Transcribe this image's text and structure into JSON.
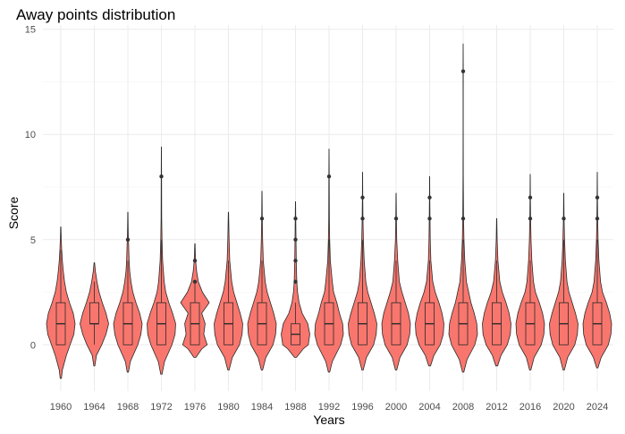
{
  "chart_data": {
    "type": "violin",
    "title": "Away points distribution",
    "xlabel": "Years",
    "ylabel": "Score",
    "ylim": [
      -2.2,
      15.2
    ],
    "yticks": [
      0,
      5,
      10,
      15
    ],
    "grid": true,
    "legend": "none",
    "colors": {
      "fill": "#F8766D",
      "stroke": "#2b2b2b",
      "outlier": "#333333",
      "grid": "#ebebeb"
    },
    "categories": [
      "1960",
      "1964",
      "1968",
      "1972",
      "1976",
      "1980",
      "1984",
      "1988",
      "1992",
      "1996",
      "2000",
      "2004",
      "2008",
      "2012",
      "2016",
      "2020",
      "2024"
    ],
    "series": [
      {
        "year": "1960",
        "violin_min": -1.6,
        "violin_max": 5.6,
        "wmax": 0.46,
        "q1": 0,
        "median": 1,
        "q3": 2,
        "whisker_low": 0,
        "whisker_high": 4.5,
        "outliers": [],
        "density": [
          [
            -1.6,
            0.02
          ],
          [
            -1.2,
            0.05
          ],
          [
            -0.5,
            0.18
          ],
          [
            0,
            0.3
          ],
          [
            0.5,
            0.42
          ],
          [
            1,
            0.46
          ],
          [
            1.5,
            0.4
          ],
          [
            2,
            0.28
          ],
          [
            2.5,
            0.18
          ],
          [
            3,
            0.12
          ],
          [
            3.5,
            0.08
          ],
          [
            4,
            0.05
          ],
          [
            4.5,
            0.03
          ],
          [
            5,
            0.015
          ],
          [
            5.6,
            0.005
          ]
        ]
      },
      {
        "year": "1964",
        "violin_min": -1.0,
        "violin_max": 3.9,
        "wmax": 0.54,
        "q1": 1,
        "median": 1,
        "q3": 2,
        "whisker_low": 0,
        "whisker_high": 3,
        "outliers": [],
        "density": [
          [
            -1.0,
            0.02
          ],
          [
            -0.5,
            0.08
          ],
          [
            0,
            0.28
          ],
          [
            0.5,
            0.44
          ],
          [
            1,
            0.54
          ],
          [
            1.5,
            0.44
          ],
          [
            2,
            0.3
          ],
          [
            2.5,
            0.18
          ],
          [
            3,
            0.1
          ],
          [
            3.5,
            0.04
          ],
          [
            3.9,
            0.01
          ]
        ]
      },
      {
        "year": "1968",
        "violin_min": -1.3,
        "violin_max": 6.3,
        "wmax": 0.46,
        "q1": 0,
        "median": 1,
        "q3": 2,
        "whisker_low": 0,
        "whisker_high": 4,
        "outliers": [
          5
        ],
        "density": [
          [
            -1.3,
            0.02
          ],
          [
            -0.8,
            0.08
          ],
          [
            0,
            0.32
          ],
          [
            0.5,
            0.42
          ],
          [
            1,
            0.46
          ],
          [
            1.5,
            0.38
          ],
          [
            2,
            0.26
          ],
          [
            2.5,
            0.16
          ],
          [
            3,
            0.1
          ],
          [
            3.5,
            0.06
          ],
          [
            4,
            0.04
          ],
          [
            4.5,
            0.03
          ],
          [
            5,
            0.02
          ],
          [
            5.5,
            0.01
          ],
          [
            6.3,
            0.004
          ]
        ]
      },
      {
        "year": "1972",
        "violin_min": -1.4,
        "violin_max": 9.4,
        "wmax": 0.46,
        "q1": 0,
        "median": 1,
        "q3": 2,
        "whisker_low": 0,
        "whisker_high": 5,
        "outliers": [
          8
        ],
        "density": [
          [
            -1.4,
            0.02
          ],
          [
            -0.8,
            0.1
          ],
          [
            0,
            0.34
          ],
          [
            0.5,
            0.44
          ],
          [
            1,
            0.46
          ],
          [
            1.5,
            0.36
          ],
          [
            2,
            0.24
          ],
          [
            2.5,
            0.14
          ],
          [
            3,
            0.09
          ],
          [
            4,
            0.04
          ],
          [
            5,
            0.02
          ],
          [
            6,
            0.01
          ],
          [
            7,
            0.008
          ],
          [
            8,
            0.006
          ],
          [
            9.4,
            0.002
          ]
        ]
      },
      {
        "year": "1976",
        "violin_min": -0.6,
        "violin_max": 4.8,
        "wmax": 0.42,
        "q1": 0,
        "median": 1,
        "q3": 2,
        "whisker_low": 0,
        "whisker_high": 3,
        "outliers": [
          3,
          4
        ],
        "density": [
          [
            -0.6,
            0.03
          ],
          [
            -0.2,
            0.2
          ],
          [
            0,
            0.36
          ],
          [
            0.5,
            0.26
          ],
          [
            1,
            0.3
          ],
          [
            1.5,
            0.2
          ],
          [
            2,
            0.42
          ],
          [
            2.5,
            0.22
          ],
          [
            3,
            0.1
          ],
          [
            3.5,
            0.05
          ],
          [
            4,
            0.02
          ],
          [
            4.8,
            0.005
          ]
        ]
      },
      {
        "year": "1980",
        "violin_min": -1.2,
        "violin_max": 6.3,
        "wmax": 0.44,
        "q1": 0,
        "median": 1,
        "q3": 2,
        "whisker_low": 0,
        "whisker_high": 4,
        "outliers": [],
        "density": [
          [
            -1.2,
            0.02
          ],
          [
            -0.6,
            0.12
          ],
          [
            0,
            0.34
          ],
          [
            0.5,
            0.42
          ],
          [
            1,
            0.44
          ],
          [
            1.5,
            0.36
          ],
          [
            2,
            0.26
          ],
          [
            2.5,
            0.16
          ],
          [
            3,
            0.1
          ],
          [
            4,
            0.04
          ],
          [
            5,
            0.02
          ],
          [
            6.3,
            0.004
          ]
        ]
      },
      {
        "year": "1984",
        "violin_min": -1.2,
        "violin_max": 7.3,
        "wmax": 0.44,
        "q1": 0,
        "median": 1,
        "q3": 2,
        "whisker_low": 0,
        "whisker_high": 4,
        "outliers": [
          6
        ],
        "density": [
          [
            -1.2,
            0.02
          ],
          [
            -0.6,
            0.12
          ],
          [
            0,
            0.34
          ],
          [
            0.5,
            0.42
          ],
          [
            1,
            0.44
          ],
          [
            1.5,
            0.36
          ],
          [
            2,
            0.26
          ],
          [
            2.5,
            0.16
          ],
          [
            3,
            0.1
          ],
          [
            4,
            0.04
          ],
          [
            5,
            0.02
          ],
          [
            6,
            0.01
          ],
          [
            7.3,
            0.003
          ]
        ]
      },
      {
        "year": "1988",
        "violin_min": -0.6,
        "violin_max": 6.8,
        "wmax": 0.56,
        "q1": 0,
        "median": 0.5,
        "q3": 1,
        "whisker_low": 0,
        "whisker_high": 2,
        "outliers": [
          3,
          4,
          5,
          6
        ],
        "density": [
          [
            -0.6,
            0.04
          ],
          [
            -0.2,
            0.3
          ],
          [
            0,
            0.5
          ],
          [
            0.5,
            0.56
          ],
          [
            1,
            0.48
          ],
          [
            1.5,
            0.26
          ],
          [
            2,
            0.14
          ],
          [
            2.5,
            0.08
          ],
          [
            3,
            0.05
          ],
          [
            4,
            0.03
          ],
          [
            5,
            0.02
          ],
          [
            6,
            0.01
          ],
          [
            6.8,
            0.003
          ]
        ]
      },
      {
        "year": "1992",
        "violin_min": -1.3,
        "violin_max": 9.3,
        "wmax": 0.44,
        "q1": 0,
        "median": 1,
        "q3": 2,
        "whisker_low": 0,
        "whisker_high": 5,
        "outliers": [
          8
        ],
        "density": [
          [
            -1.3,
            0.02
          ],
          [
            -0.8,
            0.1
          ],
          [
            0,
            0.36
          ],
          [
            0.5,
            0.44
          ],
          [
            1,
            0.42
          ],
          [
            1.5,
            0.32
          ],
          [
            2,
            0.24
          ],
          [
            2.5,
            0.14
          ],
          [
            3,
            0.1
          ],
          [
            4,
            0.04
          ],
          [
            5,
            0.02
          ],
          [
            6,
            0.01
          ],
          [
            8,
            0.006
          ],
          [
            9.3,
            0.002
          ]
        ]
      },
      {
        "year": "1996",
        "violin_min": -1.2,
        "violin_max": 8.2,
        "wmax": 0.44,
        "q1": 0,
        "median": 1,
        "q3": 2,
        "whisker_low": 0,
        "whisker_high": 5,
        "outliers": [
          6,
          7
        ],
        "density": [
          [
            -1.2,
            0.02
          ],
          [
            -0.6,
            0.12
          ],
          [
            0,
            0.34
          ],
          [
            0.5,
            0.42
          ],
          [
            1,
            0.44
          ],
          [
            1.5,
            0.36
          ],
          [
            2,
            0.26
          ],
          [
            2.5,
            0.16
          ],
          [
            3,
            0.1
          ],
          [
            4,
            0.05
          ],
          [
            5,
            0.025
          ],
          [
            6,
            0.012
          ],
          [
            7,
            0.006
          ],
          [
            8.2,
            0.002
          ]
        ]
      },
      {
        "year": "2000",
        "violin_min": -1.2,
        "violin_max": 7.2,
        "wmax": 0.44,
        "q1": 0,
        "median": 1,
        "q3": 2,
        "whisker_low": 0,
        "whisker_high": 4,
        "outliers": [
          6
        ],
        "density": [
          [
            -1.2,
            0.02
          ],
          [
            -0.6,
            0.12
          ],
          [
            0,
            0.34
          ],
          [
            0.5,
            0.42
          ],
          [
            1,
            0.44
          ],
          [
            1.5,
            0.38
          ],
          [
            2,
            0.28
          ],
          [
            2.5,
            0.18
          ],
          [
            3,
            0.1
          ],
          [
            4,
            0.05
          ],
          [
            5,
            0.02
          ],
          [
            6,
            0.01
          ],
          [
            7.2,
            0.003
          ]
        ]
      },
      {
        "year": "2004",
        "violin_min": -1.0,
        "violin_max": 8.0,
        "wmax": 0.46,
        "q1": 0,
        "median": 1,
        "q3": 2,
        "whisker_low": 0,
        "whisker_high": 4,
        "outliers": [
          6,
          7
        ],
        "density": [
          [
            -1.0,
            0.03
          ],
          [
            -0.5,
            0.14
          ],
          [
            0,
            0.34
          ],
          [
            0.5,
            0.44
          ],
          [
            1,
            0.46
          ],
          [
            1.5,
            0.4
          ],
          [
            2,
            0.3
          ],
          [
            2.5,
            0.18
          ],
          [
            3,
            0.1
          ],
          [
            4,
            0.04
          ],
          [
            5,
            0.02
          ],
          [
            6,
            0.012
          ],
          [
            7,
            0.006
          ],
          [
            8.0,
            0.002
          ]
        ]
      },
      {
        "year": "2008",
        "violin_min": -1.3,
        "violin_max": 14.3,
        "wmax": 0.44,
        "q1": 0,
        "median": 1,
        "q3": 2,
        "whisker_low": 0,
        "whisker_high": 5,
        "outliers": [
          6,
          13
        ],
        "density": [
          [
            -1.3,
            0.02
          ],
          [
            -0.7,
            0.12
          ],
          [
            0,
            0.36
          ],
          [
            0.5,
            0.44
          ],
          [
            1,
            0.42
          ],
          [
            1.5,
            0.34
          ],
          [
            2,
            0.24
          ],
          [
            3,
            0.1
          ],
          [
            4,
            0.05
          ],
          [
            5,
            0.025
          ],
          [
            6,
            0.012
          ],
          [
            8,
            0.005
          ],
          [
            10,
            0.003
          ],
          [
            12,
            0.003
          ],
          [
            13,
            0.004
          ],
          [
            14.3,
            0.001
          ]
        ]
      },
      {
        "year": "2012",
        "violin_min": -1.0,
        "violin_max": 6.0,
        "wmax": 0.46,
        "q1": 0,
        "median": 1,
        "q3": 2,
        "whisker_low": 0,
        "whisker_high": 4,
        "outliers": [],
        "density": [
          [
            -1.0,
            0.03
          ],
          [
            -0.5,
            0.14
          ],
          [
            0,
            0.34
          ],
          [
            0.5,
            0.44
          ],
          [
            1,
            0.46
          ],
          [
            1.5,
            0.4
          ],
          [
            2,
            0.3
          ],
          [
            2.5,
            0.18
          ],
          [
            3,
            0.1
          ],
          [
            4,
            0.04
          ],
          [
            5,
            0.015
          ],
          [
            6.0,
            0.004
          ]
        ]
      },
      {
        "year": "2016",
        "violin_min": -1.2,
        "violin_max": 8.1,
        "wmax": 0.44,
        "q1": 0,
        "median": 1,
        "q3": 2,
        "whisker_low": 0,
        "whisker_high": 4,
        "outliers": [
          6,
          7
        ],
        "density": [
          [
            -1.2,
            0.02
          ],
          [
            -0.6,
            0.12
          ],
          [
            0,
            0.34
          ],
          [
            0.5,
            0.42
          ],
          [
            1,
            0.44
          ],
          [
            1.5,
            0.38
          ],
          [
            2,
            0.28
          ],
          [
            2.5,
            0.16
          ],
          [
            3,
            0.1
          ],
          [
            4,
            0.05
          ],
          [
            5,
            0.025
          ],
          [
            6,
            0.012
          ],
          [
            7,
            0.006
          ],
          [
            8.1,
            0.002
          ]
        ]
      },
      {
        "year": "2020",
        "violin_min": -1.2,
        "violin_max": 7.2,
        "wmax": 0.44,
        "q1": 0,
        "median": 1,
        "q3": 2,
        "whisker_low": 0,
        "whisker_high": 5,
        "outliers": [
          6
        ],
        "density": [
          [
            -1.2,
            0.02
          ],
          [
            -0.6,
            0.12
          ],
          [
            0,
            0.34
          ],
          [
            0.5,
            0.42
          ],
          [
            1,
            0.44
          ],
          [
            1.5,
            0.36
          ],
          [
            2,
            0.26
          ],
          [
            2.5,
            0.16
          ],
          [
            3,
            0.1
          ],
          [
            4,
            0.05
          ],
          [
            5,
            0.025
          ],
          [
            6,
            0.01
          ],
          [
            7.2,
            0.003
          ]
        ]
      },
      {
        "year": "2024",
        "violin_min": -1.1,
        "violin_max": 8.2,
        "wmax": 0.44,
        "q1": 0,
        "median": 1,
        "q3": 2,
        "whisker_low": 0,
        "whisker_high": 5,
        "outliers": [
          6,
          7
        ],
        "density": [
          [
            -1.1,
            0.02
          ],
          [
            -0.6,
            0.12
          ],
          [
            0,
            0.34
          ],
          [
            0.5,
            0.42
          ],
          [
            1,
            0.44
          ],
          [
            1.5,
            0.38
          ],
          [
            2,
            0.28
          ],
          [
            2.5,
            0.16
          ],
          [
            3,
            0.1
          ],
          [
            4,
            0.05
          ],
          [
            5,
            0.025
          ],
          [
            6,
            0.012
          ],
          [
            7,
            0.006
          ],
          [
            8.2,
            0.002
          ]
        ]
      }
    ]
  }
}
